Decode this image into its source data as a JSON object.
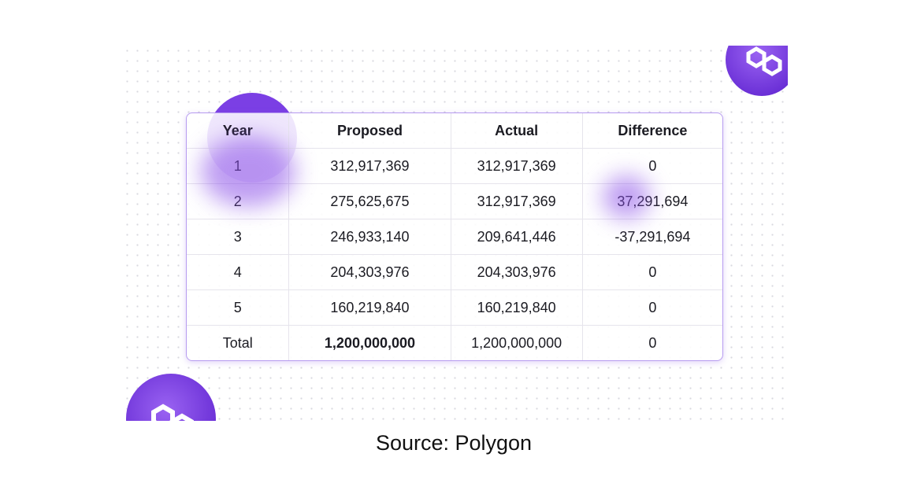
{
  "table": {
    "columns": [
      "Year",
      "Proposed",
      "Actual",
      "Difference"
    ],
    "rows": [
      [
        "1",
        "312,917,369",
        "312,917,369",
        "0"
      ],
      [
        "2",
        "275,625,675",
        "312,917,369",
        "37,291,694"
      ],
      [
        "3",
        "246,933,140",
        "209,641,446",
        "-37,291,694"
      ],
      [
        "4",
        "204,303,976",
        "204,303,976",
        "0"
      ],
      [
        "5",
        "160,219,840",
        "160,219,840",
        "0"
      ],
      [
        "Total",
        "1,200,000,000",
        "1,200,000,000",
        "0"
      ]
    ]
  },
  "caption": "Source: Polygon"
}
